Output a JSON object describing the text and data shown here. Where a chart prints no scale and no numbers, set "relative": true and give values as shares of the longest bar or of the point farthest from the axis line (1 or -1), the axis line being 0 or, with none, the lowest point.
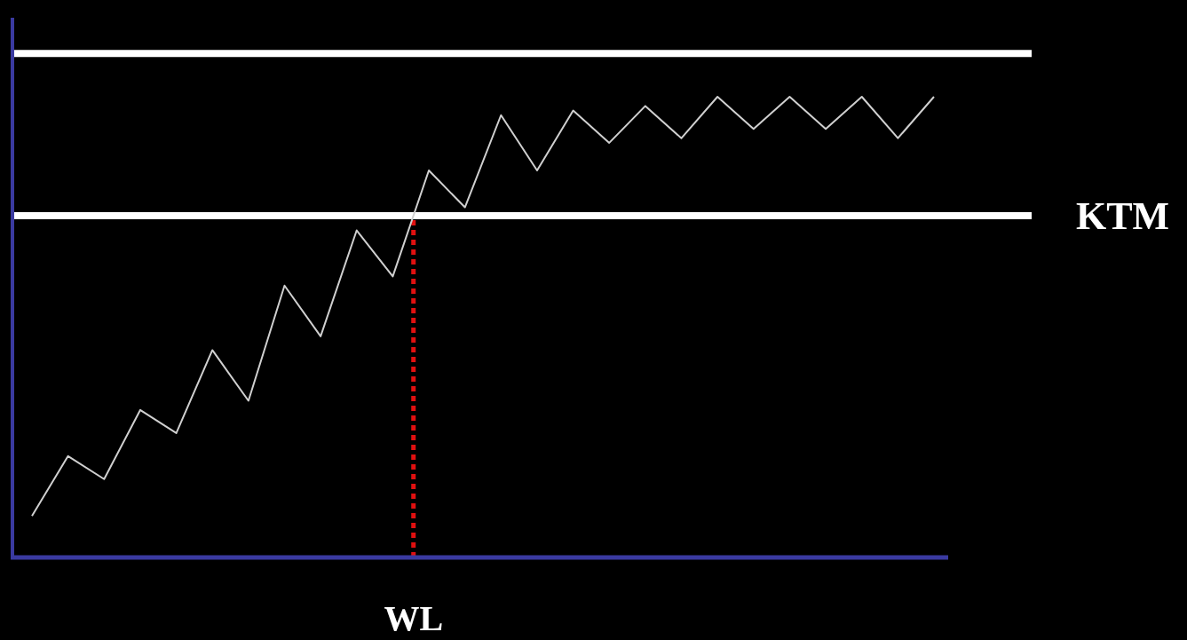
{
  "chart_data": {
    "type": "line",
    "relative": true,
    "categories": [
      null,
      null,
      null,
      null,
      null,
      null,
      null,
      null,
      null,
      null,
      null,
      null,
      null,
      null,
      null,
      null,
      null,
      null,
      null,
      null,
      null,
      null,
      null,
      null,
      null,
      null
    ],
    "series": [
      {
        "color": "#d0d0d0",
        "values": [
          0.09,
          0.22,
          0.17,
          0.32,
          0.27,
          0.45,
          0.34,
          0.59,
          0.48,
          0.71,
          0.61,
          0.84,
          0.76,
          0.96,
          0.84,
          0.97,
          0.9,
          0.98,
          0.91,
          1,
          0.93,
          1,
          0.93,
          1,
          0.91,
          1
        ]
      }
    ],
    "ref_lines": [
      {
        "axis": "y",
        "value": 1.094,
        "color": "#ffffff",
        "line_style": "solid"
      },
      {
        "axis": "y",
        "value": 0.742,
        "label": "KTM",
        "color": "#ffffff",
        "line_style": "solid"
      }
    ],
    "annotations": [
      "WL"
    ]
  }
}
